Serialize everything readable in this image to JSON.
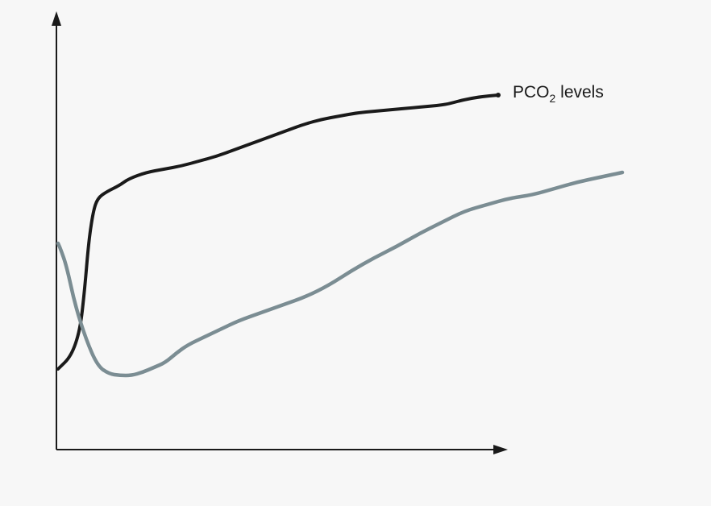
{
  "chart_data": {
    "type": "line",
    "title": "",
    "xlabel": "",
    "ylabel": "",
    "xlim": [
      0,
      100
    ],
    "ylim": [
      0,
      100
    ],
    "grid": false,
    "series": [
      {
        "name": "PCO₂ levels",
        "label_main": "PCO",
        "label_sub": "2",
        "label_rest": " levels",
        "color": "#1a1a1a",
        "x": [
          0,
          3,
          5,
          6,
          7,
          8,
          9,
          11,
          14,
          16,
          20,
          24,
          28,
          32,
          36,
          40,
          44,
          48,
          52,
          56,
          60,
          64,
          68,
          72,
          76,
          80,
          84,
          88,
          92,
          96,
          100
        ],
        "y": [
          18,
          22,
          30,
          42,
          58,
          67,
          71,
          73,
          75,
          77,
          79,
          80,
          81,
          82.5,
          84,
          86,
          88,
          90,
          92,
          94,
          95.5,
          96.5,
          97.5,
          98,
          98.5,
          99,
          99.5,
          100,
          101.5,
          102.5,
          103
        ]
      },
      {
        "name": "",
        "color": "#7b8d93",
        "x": [
          0,
          0.5,
          1.5,
          3,
          5,
          7,
          9,
          11,
          13,
          15,
          17,
          19,
          21,
          23,
          26,
          29,
          32,
          36,
          40,
          44,
          48,
          52,
          56,
          60,
          64,
          68,
          72,
          76,
          80,
          84,
          88,
          92,
          96,
          100
        ],
        "y": [
          57,
          55,
          50,
          38,
          27,
          19,
          16.5,
          16,
          16,
          17,
          18.5,
          20,
          23,
          25.5,
          28,
          30.5,
          33,
          35.5,
          38,
          40.5,
          44,
          48.5,
          52.5,
          56,
          60,
          63.5,
          67,
          69,
          71,
          72,
          74,
          76,
          77.5,
          79
        ]
      }
    ]
  }
}
